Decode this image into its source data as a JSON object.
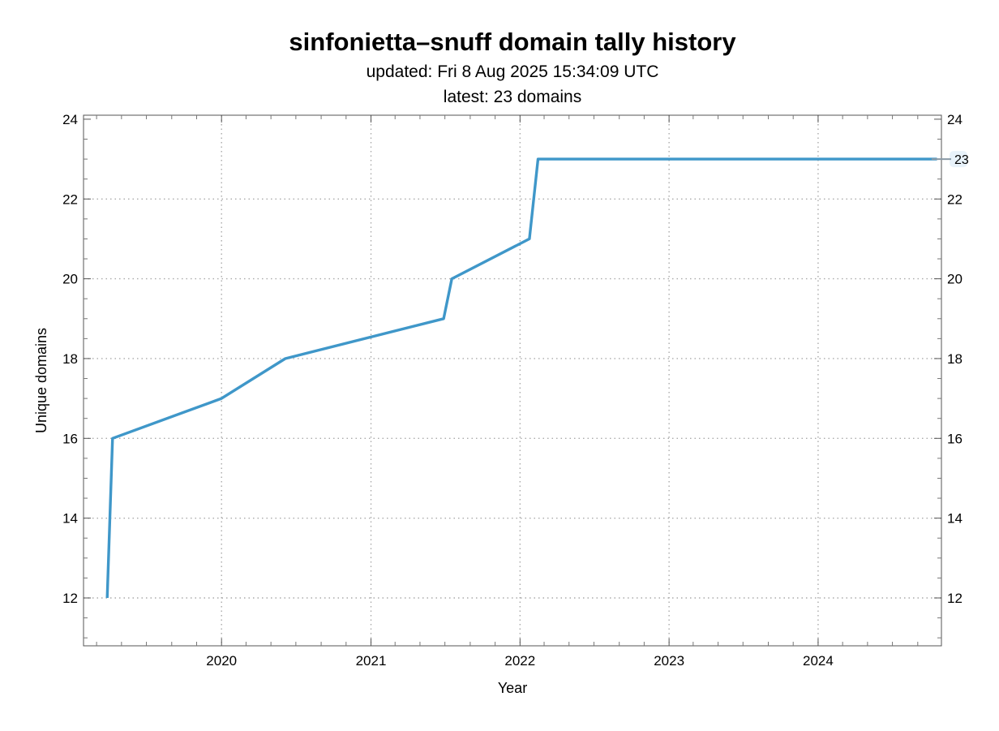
{
  "chart_data": {
    "type": "line",
    "title": "sinfonietta–snuff domain tally history",
    "subtitle": "updated: Fri 8 Aug 2025 15:34:09 UTC",
    "subtitle2": "latest: 23 domains",
    "xlabel": "Year",
    "ylabel": "Unique domains",
    "xlim": [
      "2019-01-28",
      "2024-10-29"
    ],
    "ylim": [
      10.8,
      24.1
    ],
    "x_ticks": [
      "2020",
      "2021",
      "2022",
      "2023",
      "2024"
    ],
    "y_ticks": [
      12,
      14,
      16,
      18,
      20,
      22,
      24
    ],
    "grid": true,
    "line_color": "#3f97c9",
    "series": [
      {
        "points": [
          {
            "x": "2019-03-27",
            "y": 12
          },
          {
            "x": "2019-04-09",
            "y": 16
          },
          {
            "x": "2020-01-01",
            "y": 17
          },
          {
            "x": "2020-06-05",
            "y": 18
          },
          {
            "x": "2021-06-28",
            "y": 19
          },
          {
            "x": "2021-07-18",
            "y": 20
          },
          {
            "x": "2022-01-24",
            "y": 21
          },
          {
            "x": "2022-02-14",
            "y": 23
          },
          {
            "x": "2024-10-18",
            "y": 23
          }
        ]
      }
    ],
    "annotations": [
      {
        "text": "23",
        "y": 23
      }
    ]
  }
}
